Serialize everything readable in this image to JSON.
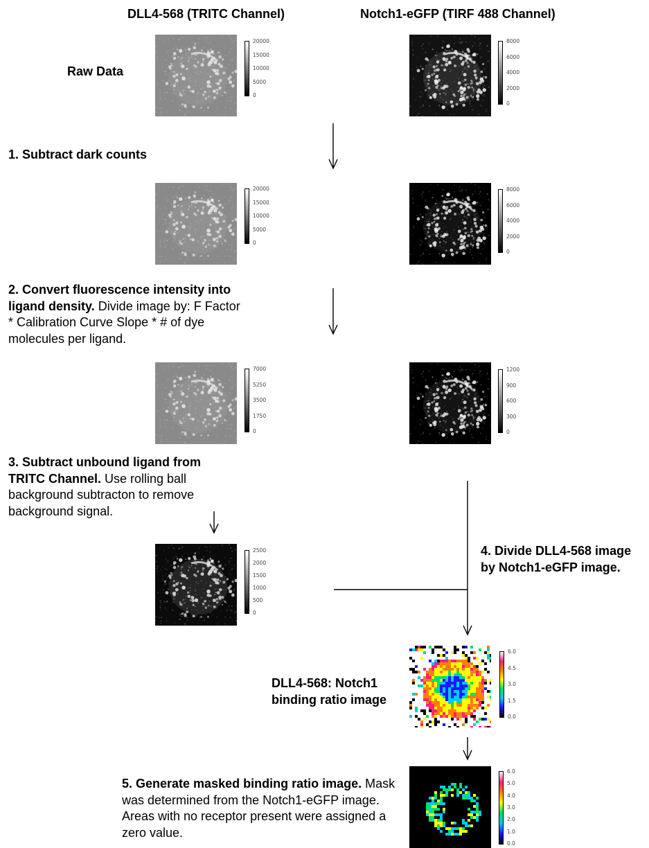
{
  "headers": {
    "left": "DLL4-568 (TRITC Channel)",
    "right": "Notch1-eGFP (TIRF 488 Channel)"
  },
  "raw_label": "Raw Data",
  "steps": {
    "s1": {
      "bold": "1. Subtract dark counts",
      "rest": ""
    },
    "s2": {
      "bold": "2. Convert fluorescence intensity into ligand density.",
      "rest": " Divide image by: F Factor * Calibration Curve Slope * # of dye molecules per ligand."
    },
    "s3": {
      "bold": "3. Subtract unbound ligand from TRITC Channel.",
      "rest": " Use rolling ball background subtracton to remove background signal."
    },
    "s4": {
      "bold": "4. Divide DLL4-568 image by Notch1-eGFP image.",
      "rest": ""
    },
    "s5": {
      "bold": "5. Generate masked binding ratio image.",
      "rest": " Mask was determined from the Notch1-eGFP image. Areas with no receptor present were assigned a zero value."
    }
  },
  "ratio_label": "DLL4-568: Notch1 binding ratio image",
  "colorbars": {
    "tritc_raw": [
      "20000",
      "15000",
      "10000",
      "5000",
      "0"
    ],
    "gfp_raw": [
      "8000",
      "6000",
      "4000",
      "2000",
      "0"
    ],
    "tritc_dark": [
      "20000",
      "15000",
      "10000",
      "5000",
      "0"
    ],
    "gfp_dark": [
      "8000",
      "6000",
      "4000",
      "2000",
      "0"
    ],
    "tritc_density": [
      "7000",
      "5250",
      "3500",
      "1750",
      "0"
    ],
    "gfp_density": [
      "1200",
      "900",
      "600",
      "300",
      "0"
    ],
    "tritc_sub": [
      "2500",
      "2000",
      "1500",
      "1000",
      "500",
      "0"
    ],
    "ratio": [
      "6.0",
      "4.5",
      "3.0",
      "1.5",
      "0.0"
    ],
    "masked": [
      "6.0",
      "5.0",
      "4.0",
      "3.0",
      "2.0",
      "1.0",
      "0.0"
    ]
  },
  "colors": {
    "tritc_bg": "#8a8a8a",
    "gfp_bg": "#121212",
    "ratio_colormap": [
      "#000000",
      "#1a1aff",
      "#00c8ff",
      "#00e060",
      "#ffff00",
      "#ff8000",
      "#ff2080",
      "#ffffff"
    ]
  },
  "icons": {
    "arrow": "down-arrow",
    "connector": "merge-line"
  }
}
